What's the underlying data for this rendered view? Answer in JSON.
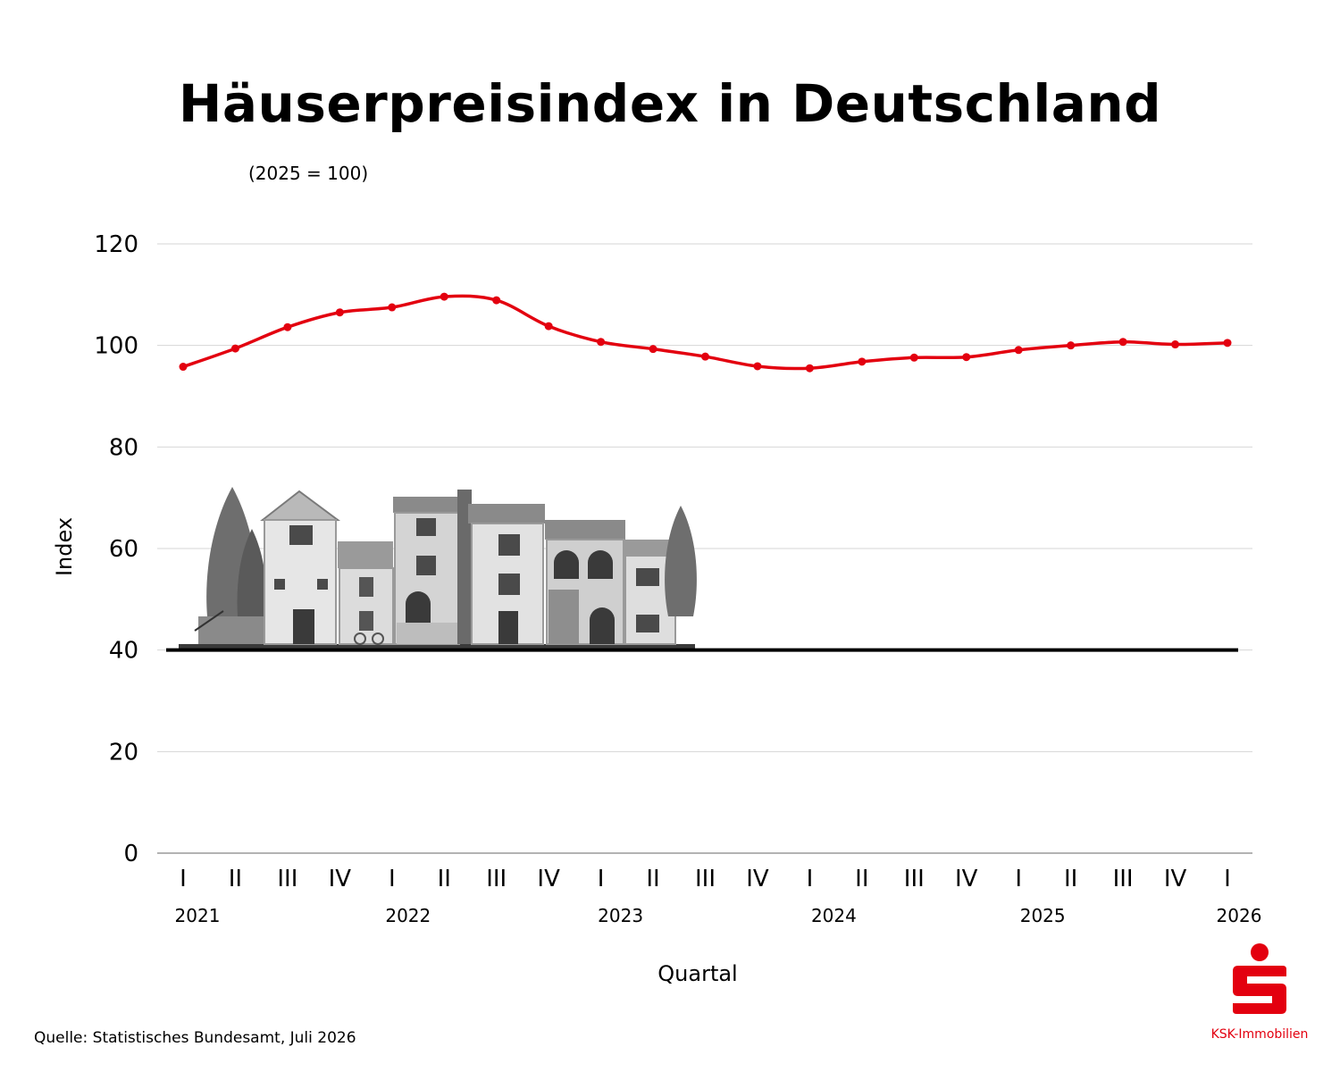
{
  "chart_data": {
    "type": "line",
    "title": "Häuserpreisindex in Deutschland",
    "subtitle": "(2025 = 100)",
    "xlabel": "Quartal",
    "ylabel": "Index",
    "ylim": [
      0,
      120
    ],
    "yticks": [
      0,
      20,
      40,
      60,
      80,
      100,
      120
    ],
    "grid": true,
    "quarters": [
      "I",
      "II",
      "III",
      "IV",
      "I",
      "II",
      "III",
      "IV",
      "I",
      "II",
      "III",
      "IV",
      "I",
      "II",
      "III",
      "IV",
      "I",
      "II",
      "III",
      "IV",
      "I"
    ],
    "years": [
      "2021",
      "2022",
      "2023",
      "2024",
      "2025",
      "2026"
    ],
    "series": [
      {
        "name": "",
        "color": "#e3000f",
        "values": [
          95.8,
          99.4,
          103.6,
          106.5,
          107.5,
          109.6,
          108.9,
          103.8,
          100.7,
          99.3,
          97.8,
          95.9,
          95.5,
          96.8,
          97.6,
          97.7,
          99.1,
          100.0,
          100.7,
          100.2,
          100.5
        ]
      }
    ],
    "baseline": 40
  },
  "source": "Quelle: Statistisches Bundesamt, Juli 2026",
  "brand": {
    "name": "KSK-Immobilien",
    "color": "#e3000f"
  },
  "illustration": {
    "icon": "houses-illustration"
  }
}
